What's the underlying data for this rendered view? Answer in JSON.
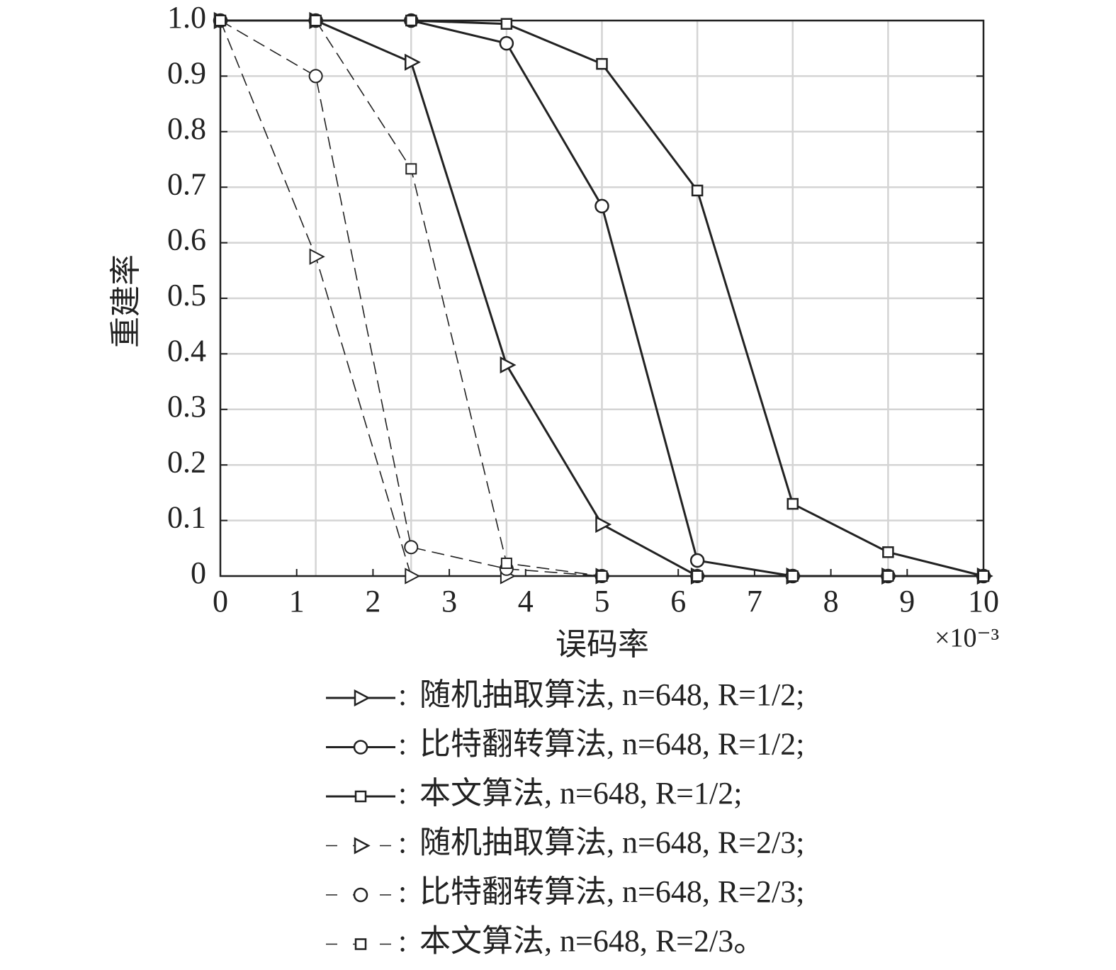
{
  "chart_data": {
    "type": "line",
    "y_label": "重建率",
    "x_label": "误码率",
    "x_scale_label": "×10⁻³",
    "x": [
      0,
      1.25,
      2.5,
      3.75,
      5,
      6.25,
      7.5,
      8.75,
      10
    ],
    "xlim": [
      0,
      10
    ],
    "xticks": [
      0,
      1,
      2,
      3,
      4,
      5,
      6,
      7,
      8,
      9,
      10
    ],
    "x_grid_at": [
      1.25,
      2.5,
      3.75,
      5,
      6.25,
      7.5,
      8.75
    ],
    "ylim": [
      0,
      1
    ],
    "yticks": [
      0,
      0.1,
      0.2,
      0.3,
      0.4,
      0.5,
      0.6,
      0.7,
      0.8,
      0.9,
      {
        "value": 1,
        "label": "1.0"
      }
    ],
    "grid": true,
    "legend_separator": ":",
    "series": [
      {
        "name": "随机抽取算法, n=648, R=1/2;",
        "color": "#222222",
        "dashed": false,
        "marker": "triangle-right",
        "values": [
          1,
          1,
          0.925,
          0.38,
          0.093,
          0,
          0,
          0,
          0
        ]
      },
      {
        "name": "比特翻转算法, n=648, R=1/2;",
        "color": "#222222",
        "dashed": false,
        "marker": "circle",
        "values": [
          1,
          1,
          1,
          0.959,
          0.666,
          0.028,
          0,
          0,
          0
        ]
      },
      {
        "name": "本文算法, n=648, R=1/2;",
        "color": "#222222",
        "dashed": false,
        "marker": "square",
        "values": [
          1,
          1,
          1,
          0.994,
          0.922,
          0.694,
          0.13,
          0.043,
          0
        ]
      },
      {
        "name": "随机抽取算法, n=648, R=2/3;",
        "color": "#222222",
        "dashed": true,
        "marker": "triangle-right",
        "values": [
          1,
          0.575,
          0,
          0,
          0,
          0,
          0,
          0,
          0
        ]
      },
      {
        "name": "比特翻转算法, n=648, R=2/3;",
        "color": "#222222",
        "dashed": true,
        "marker": "circle",
        "values": [
          1,
          0.9,
          0.052,
          0.013,
          0,
          0,
          0,
          0,
          0
        ]
      },
      {
        "name": "本文算法, n=648, R=2/3。",
        "color": "#222222",
        "dashed": true,
        "marker": "square",
        "values": [
          1,
          1,
          0.733,
          0.023,
          0,
          0,
          0,
          0,
          0
        ]
      }
    ]
  }
}
